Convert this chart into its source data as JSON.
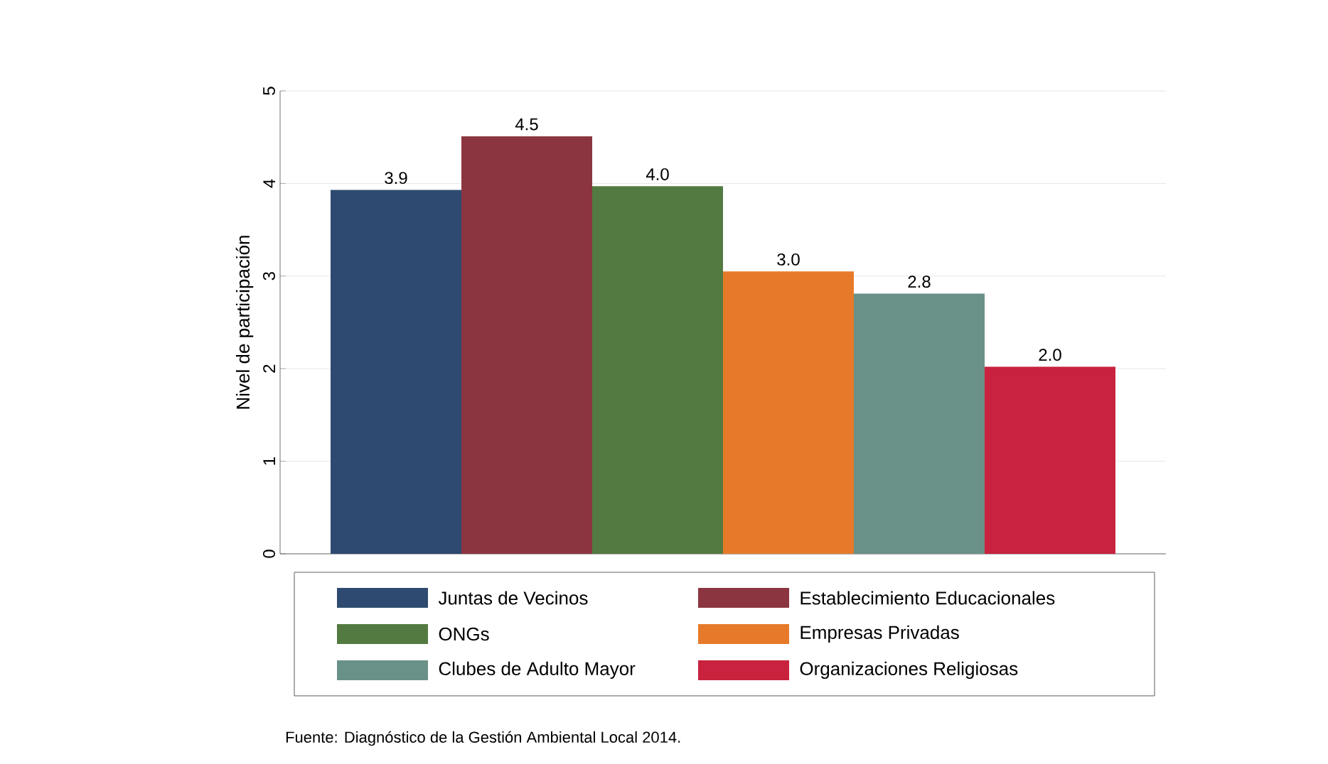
{
  "chart_data": {
    "type": "bar",
    "categories": [
      null
    ],
    "ylabel": "Nivel de participación",
    "ylim": [
      0,
      5
    ],
    "yticks": [
      0,
      1,
      2,
      3,
      4,
      5
    ],
    "grid": "y",
    "legend": "bottom",
    "series": [
      {
        "name": "Juntas de Vecinos",
        "color": "#2e4a70",
        "values": [
          3.93
        ],
        "value_labels": [
          "3.9"
        ]
      },
      {
        "name": "Establecimiento Educacionales",
        "color": "#8b3540",
        "values": [
          4.51
        ],
        "value_labels": [
          "4.5"
        ]
      },
      {
        "name": "ONGs",
        "color": "#537a40",
        "values": [
          3.97
        ],
        "value_labels": [
          "4.0"
        ]
      },
      {
        "name": "Empresas Privadas",
        "color": "#e77a2a",
        "values": [
          3.05
        ],
        "value_labels": [
          "3.0"
        ]
      },
      {
        "name": "Clubes de Adulto Mayor",
        "color": "#6a9188",
        "values": [
          2.81
        ],
        "value_labels": [
          "2.8"
        ]
      },
      {
        "name": "Organizaciones Religiosas",
        "color": "#c8223e",
        "values": [
          2.02
        ],
        "value_labels": [
          "2.0"
        ]
      }
    ],
    "annotations": [
      "Fuente: Diagnóstico de la Gestión Ambiental Local 2014."
    ]
  }
}
